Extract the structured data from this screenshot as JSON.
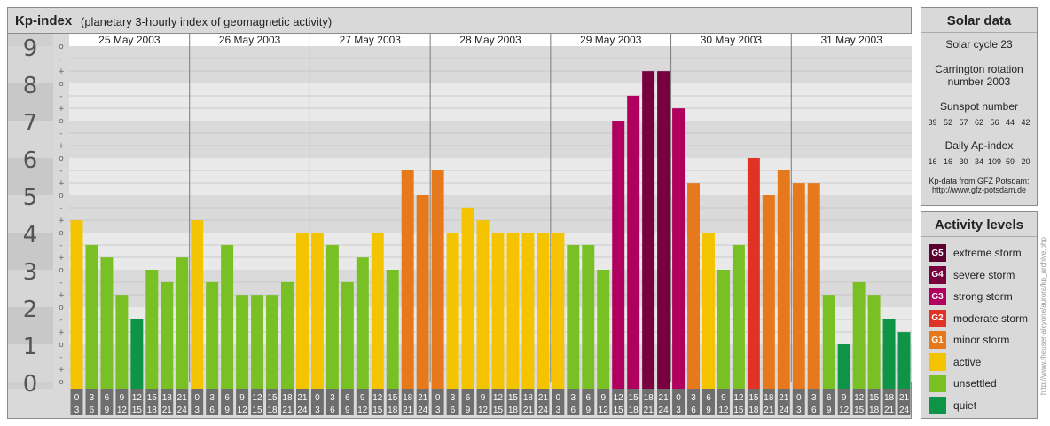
{
  "header": {
    "title": "Kp-index",
    "subtitle": "(planetary 3-hourly index of geomagnetic activity)"
  },
  "solar": {
    "title": "Solar data",
    "cycle": "Solar cycle 23",
    "carrington_line1": "Carrington rotation",
    "carrington_line2": "number 2003",
    "sunspot_label": "Sunspot number",
    "sunspot_values": "39   52   57   62   56   44   42",
    "ap_label": "Daily Ap-index",
    "ap_values": "16   16   30   34  109  59   20",
    "source_line1": "Kp-data from GFZ Potsdam:",
    "source_line2": "http://www.gfz-potsdam.de"
  },
  "levels": {
    "title": "Activity levels",
    "items": [
      {
        "code": "G5",
        "label": "extreme storm",
        "color": "#5c0030"
      },
      {
        "code": "G4",
        "label": "severe storm",
        "color": "#78003f"
      },
      {
        "code": "G3",
        "label": "strong storm",
        "color": "#b0005d"
      },
      {
        "code": "G2",
        "label": "moderate storm",
        "color": "#e03225"
      },
      {
        "code": "G1",
        "label": "minor storm",
        "color": "#e6791b"
      },
      {
        "code": "",
        "label": "active",
        "color": "#f5c400"
      },
      {
        "code": "",
        "label": "unsettled",
        "color": "#78c024"
      },
      {
        "code": "",
        "label": "quiet",
        "color": "#0d9447"
      }
    ]
  },
  "watermark": "http://www.theuser-alcyone/aurora/kp_archive.php",
  "chart_data": {
    "type": "bar",
    "title": "Kp-index",
    "subtitle": "(planetary 3-hourly index of geomagnetic activity)",
    "ylim": [
      0,
      9
    ],
    "yticks": [
      "0",
      "1",
      "2",
      "3",
      "4",
      "5",
      "6",
      "7",
      "8",
      "9"
    ],
    "minor_labels": [
      "o",
      "+",
      "-"
    ],
    "days": [
      "25 May 2003",
      "26 May 2003",
      "27 May 2003",
      "28 May 2003",
      "29 May 2003",
      "30 May 2003",
      "31 May 2003"
    ],
    "interval_top": [
      "0",
      "3",
      "6",
      "9",
      "12",
      "15",
      "18",
      "21"
    ],
    "interval_bottom": [
      "3",
      "6",
      "9",
      "12",
      "15",
      "18",
      "21",
      "24"
    ],
    "values": [
      4.33,
      3.67,
      3.33,
      2.33,
      1.67,
      3.0,
      2.67,
      3.33,
      4.33,
      2.67,
      3.67,
      2.33,
      2.33,
      2.33,
      2.67,
      4.0,
      4.0,
      3.67,
      2.67,
      3.33,
      4.0,
      3.0,
      5.67,
      5.0,
      5.67,
      4.0,
      4.67,
      4.33,
      4.0,
      4.0,
      4.0,
      4.0,
      4.0,
      3.67,
      3.67,
      3.0,
      7.0,
      7.67,
      8.33,
      8.33,
      7.33,
      5.33,
      4.0,
      3.0,
      3.67,
      6.0,
      5.0,
      5.67,
      5.33,
      5.33,
      2.33,
      1.0,
      2.67,
      2.33,
      1.67,
      1.33
    ],
    "level_colors": {
      "quiet": "#0d9447",
      "unsettled": "#78c024",
      "active": "#f5c400",
      "G1": "#e6791b",
      "G2": "#e03225",
      "G3": "#b0005d",
      "G4": "#78003f",
      "G5": "#5c0030"
    }
  }
}
